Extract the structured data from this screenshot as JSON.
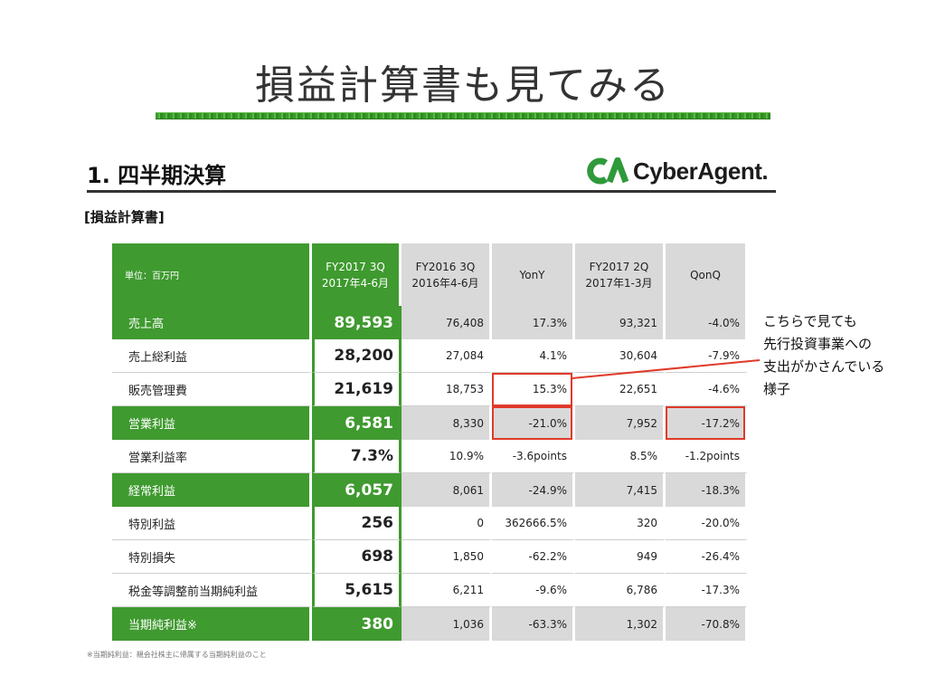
{
  "slide": {
    "title": "損益計算書も見てみる",
    "annotation": [
      "こちらで見ても",
      "先行投資事業への",
      "支出がかさんでいる",
      "様子"
    ]
  },
  "report": {
    "section_title": "1. 四半期決算",
    "logo_text": "CyberAgent.",
    "subheading": "[損益計算書]",
    "footnote": "※当期純利益：親会社株主に帰属する当期純利益のこと",
    "table": {
      "headers": [
        {
          "lines": [
            "単位：百万円"
          ]
        },
        {
          "lines": [
            "FY2017 3Q",
            "2017年4-6月"
          ]
        },
        {
          "lines": [
            "FY2016 3Q",
            "2016年4-6月"
          ]
        },
        {
          "lines": [
            "YonY"
          ]
        },
        {
          "lines": [
            "FY2017 2Q",
            "2017年1-3月"
          ]
        },
        {
          "lines": [
            "QonQ"
          ]
        }
      ],
      "rows": [
        {
          "label": "売上高",
          "highlight": true,
          "cells": [
            "89,593",
            "76,408",
            "17.3%",
            "93,321",
            "-4.0%"
          ]
        },
        {
          "label": "売上総利益",
          "highlight": false,
          "cells": [
            "28,200",
            "27,084",
            "4.1%",
            "30,604",
            "-7.9%"
          ]
        },
        {
          "label": "販売管理費",
          "highlight": false,
          "cells": [
            "21,619",
            "18,753",
            "15.3%",
            "22,651",
            "-4.6%"
          ]
        },
        {
          "label": "営業利益",
          "highlight": true,
          "cells": [
            "6,581",
            "8,330",
            "-21.0%",
            "7,952",
            "-17.2%"
          ]
        },
        {
          "label": "営業利益率",
          "highlight": false,
          "cells": [
            "7.3%",
            "10.9%",
            "-3.6points",
            "8.5%",
            "-1.2points"
          ]
        },
        {
          "label": "経常利益",
          "highlight": true,
          "cells": [
            "6,057",
            "8,061",
            "-24.9%",
            "7,415",
            "-18.3%"
          ]
        },
        {
          "label": "特別利益",
          "highlight": false,
          "cells": [
            "256",
            "0",
            "362666.5%",
            "320",
            "-20.0%"
          ]
        },
        {
          "label": "特別損失",
          "highlight": false,
          "cells": [
            "698",
            "1,850",
            "-62.2%",
            "949",
            "-26.4%"
          ]
        },
        {
          "label": "税金等調整前当期純利益",
          "highlight": false,
          "cells": [
            "5,615",
            "6,211",
            "-9.6%",
            "6,786",
            "-17.3%"
          ]
        },
        {
          "label": "当期純利益※",
          "highlight": true,
          "cells": [
            "380",
            "1,036",
            "-63.3%",
            "1,302",
            "-70.8%"
          ]
        }
      ]
    }
  },
  "colors": {
    "brand_green": "#3f9a2f",
    "header_grey": "#d9d9d9",
    "highlight_red": "#e03a2a"
  }
}
